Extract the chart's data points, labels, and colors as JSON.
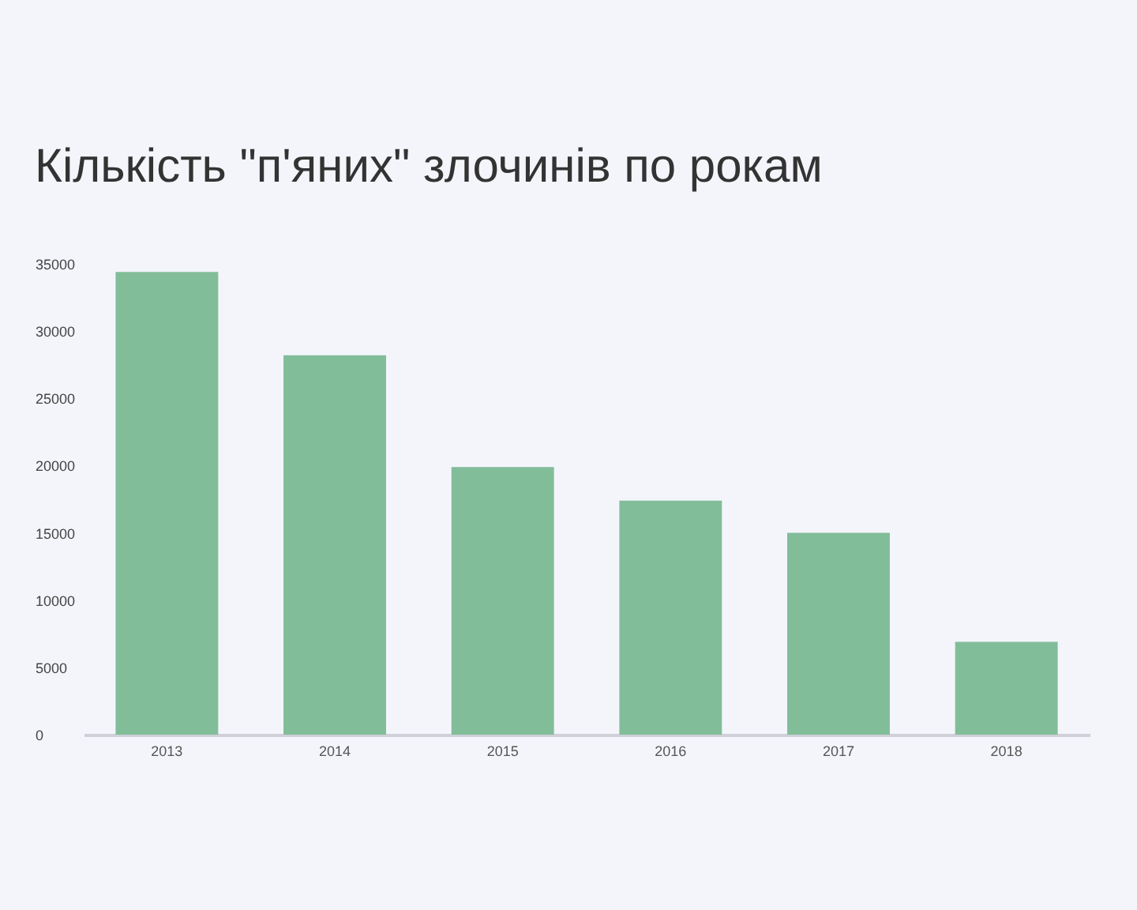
{
  "chart_data": {
    "type": "bar",
    "title": "Кількість \"п'яних\" злочинів по рокам",
    "categories": [
      "2013",
      "2014",
      "2015",
      "2016",
      "2017",
      "2018"
    ],
    "values": [
      34400,
      28200,
      19900,
      17400,
      15000,
      6900
    ],
    "color": "#82bd9a",
    "ylim": [
      0,
      35000
    ],
    "yticks": [
      0,
      5000,
      10000,
      15000,
      20000,
      25000,
      30000,
      35000
    ]
  }
}
